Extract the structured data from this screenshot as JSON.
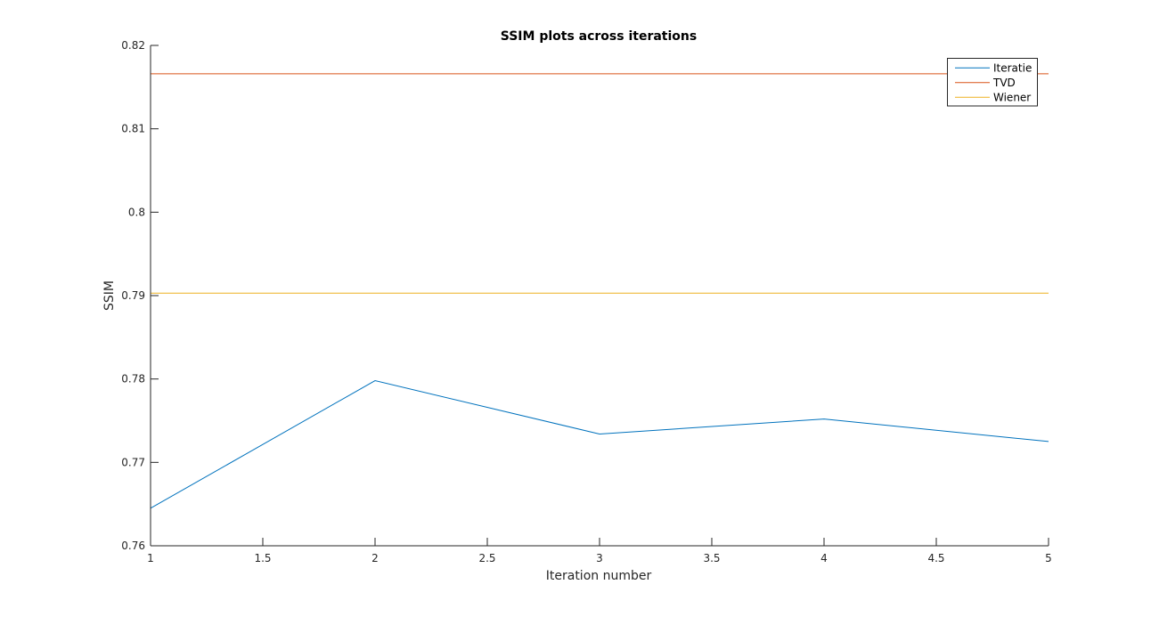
{
  "chart_data": {
    "type": "line",
    "title": "SSIM plots across iterations",
    "xlabel": "Iteration number",
    "ylabel": "SSIM",
    "xlim": [
      1,
      5
    ],
    "ylim": [
      0.76,
      0.82
    ],
    "x_ticks": [
      1,
      1.5,
      2,
      2.5,
      3,
      3.5,
      4,
      4.5,
      5
    ],
    "x_tick_labels": [
      "1",
      "1.5",
      "2",
      "2.5",
      "3",
      "3.5",
      "4",
      "4.5",
      "5"
    ],
    "y_ticks": [
      0.76,
      0.77,
      0.78,
      0.79,
      0.8,
      0.81,
      0.82
    ],
    "y_tick_labels": [
      "0.76",
      "0.77",
      "0.78",
      "0.79",
      "0.8",
      "0.81",
      "0.82"
    ],
    "grid": false,
    "legend_position": "top-right",
    "series": [
      {
        "name": "Iteratie",
        "color": "#0072BD",
        "x": [
          1,
          2,
          3,
          4,
          5
        ],
        "values": [
          0.7645,
          0.7798,
          0.7734,
          0.7752,
          0.7725
        ]
      },
      {
        "name": "TVD",
        "color": "#D95319",
        "x": [
          1,
          5
        ],
        "values": [
          0.8166,
          0.8166
        ]
      },
      {
        "name": "Wiener",
        "color": "#EDB120",
        "x": [
          1,
          5
        ],
        "values": [
          0.7903,
          0.7903
        ]
      }
    ]
  }
}
